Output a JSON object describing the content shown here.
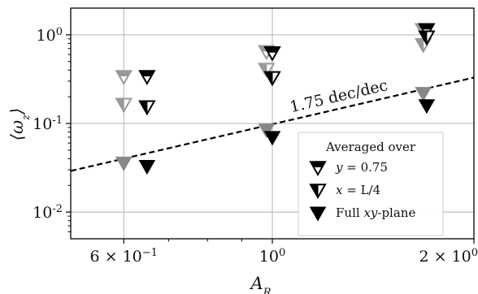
{
  "chart_data": {
    "type": "scatter",
    "x_scale": "log",
    "y_scale": "log",
    "xlim": [
      0.5,
      2.0
    ],
    "ylim": [
      0.005,
      2.0
    ],
    "grid": true,
    "xlabel": "A_R",
    "ylabel": "⟨ω_z⟩",
    "x_ticks": [
      {
        "value": 0.6,
        "label": "6 × 10",
        "exp": "−1"
      },
      {
        "value": 1.0,
        "label": "10",
        "exp": "0"
      },
      {
        "value": 2.0,
        "label": "2 × 10",
        "exp": "0"
      }
    ],
    "y_ticks": [
      {
        "value": 0.01,
        "label": "10",
        "exp": "-2"
      },
      {
        "value": 0.1,
        "label": "10",
        "exp": "-1"
      },
      {
        "value": 1.0,
        "label": "10",
        "exp": "0"
      }
    ],
    "series": [
      {
        "key": "y",
        "label_var": "y",
        "label_val": " = 0.75",
        "marker": "triangle-down-half-right-filled",
        "points": [
          {
            "x": 0.6,
            "y": 0.34,
            "color": "#999999"
          },
          {
            "x": 0.65,
            "y": 0.34,
            "color": "#000000"
          },
          {
            "x": 0.98,
            "y": 0.65,
            "color": "#999999"
          },
          {
            "x": 1.0,
            "y": 0.63,
            "color": "#000000"
          },
          {
            "x": 1.68,
            "y": 1.15,
            "color": "#999999"
          },
          {
            "x": 1.7,
            "y": 1.15,
            "color": "#000000"
          }
        ]
      },
      {
        "key": "x",
        "label_var": "x",
        "label_val": " = L/4",
        "marker": "triangle-down-half-left-filled",
        "points": [
          {
            "x": 0.6,
            "y": 0.165,
            "color": "#999999"
          },
          {
            "x": 0.65,
            "y": 0.155,
            "color": "#000000"
          },
          {
            "x": 0.98,
            "y": 0.41,
            "color": "#999999"
          },
          {
            "x": 1.0,
            "y": 0.33,
            "color": "#000000"
          },
          {
            "x": 1.68,
            "y": 0.78,
            "color": "#999999"
          },
          {
            "x": 1.7,
            "y": 0.95,
            "color": "#000000"
          }
        ]
      },
      {
        "key": "full",
        "label_var": "Full",
        "label_val": "xy-plane",
        "marker": "triangle-down-filled",
        "points": [
          {
            "x": 0.6,
            "y": 0.036,
            "color": "#888888"
          },
          {
            "x": 0.65,
            "y": 0.033,
            "color": "#000000"
          },
          {
            "x": 0.98,
            "y": 0.085,
            "color": "#888888"
          },
          {
            "x": 1.0,
            "y": 0.07,
            "color": "#000000"
          },
          {
            "x": 1.68,
            "y": 0.22,
            "color": "#888888"
          },
          {
            "x": 1.7,
            "y": 0.16,
            "color": "#000000"
          }
        ]
      }
    ],
    "reference_line": {
      "label": "1.75 dec/dec",
      "slope": 1.75,
      "x": [
        0.5,
        2.0
      ],
      "y_at_1": 0.098,
      "style": "dashed"
    },
    "legend": {
      "title": "Averaged over",
      "placement": "lower-right"
    }
  }
}
